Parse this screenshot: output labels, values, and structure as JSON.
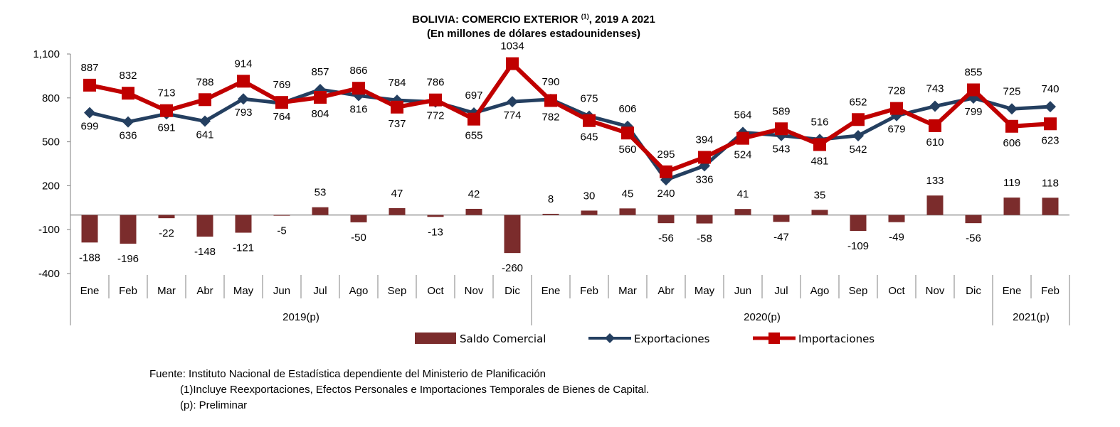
{
  "chart_data": {
    "type": "bar+line",
    "title_line1_main": "BOLIVIA: COMERCIO EXTERIOR",
    "title_line1_sup": "(1)",
    "title_line1_tail": ", 2019 A 2021",
    "title_line2": "(En millones de dólares estadounidenses)",
    "y_ticks": [
      "1,100",
      "800",
      "500",
      "200",
      "-100",
      "-400"
    ],
    "ylim": [
      -400,
      1100
    ],
    "months": [
      "Ene",
      "Feb",
      "Mar",
      "Abr",
      "May",
      "Jun",
      "Jul",
      "Ago",
      "Sep",
      "Oct",
      "Nov",
      "Dic",
      "Ene",
      "Feb",
      "Mar",
      "Abr",
      "May",
      "Jun",
      "Jul",
      "Ago",
      "Sep",
      "Oct",
      "Nov",
      "Dic",
      "Ene",
      "Feb"
    ],
    "years": [
      {
        "label": "2019(p)",
        "count": 12
      },
      {
        "label": "2020(p)",
        "count": 12
      },
      {
        "label": "2021(p)",
        "count": 2
      }
    ],
    "series": [
      {
        "name": "Saldo Comercial",
        "type": "bar",
        "color": "#7b2c2c",
        "values": [
          -188,
          -196,
          -22,
          -148,
          -121,
          -5,
          53,
          -50,
          47,
          -13,
          42,
          -260,
          8,
          30,
          45,
          -56,
          -58,
          41,
          -47,
          35,
          -109,
          -49,
          133,
          -56,
          119,
          118
        ]
      },
      {
        "name": "Exportaciones",
        "type": "line",
        "color": "#243f60",
        "marker": "diamond",
        "values": [
          699,
          636,
          691,
          641,
          793,
          764,
          857,
          816,
          784,
          772,
          697,
          774,
          790,
          675,
          606,
          240,
          336,
          564,
          543,
          516,
          542,
          679,
          743,
          799,
          725,
          740
        ]
      },
      {
        "name": "Importaciones",
        "type": "line",
        "color": "#c00000",
        "marker": "square",
        "values": [
          887,
          832,
          713,
          788,
          914,
          769,
          804,
          866,
          737,
          786,
          655,
          1034,
          782,
          645,
          560,
          295,
          394,
          524,
          589,
          481,
          652,
          728,
          610,
          855,
          606,
          623
        ]
      }
    ],
    "legend_position": "bottom"
  },
  "notes": {
    "source": "Fuente: Instituto Nacional de Estadística dependiente del Ministerio de Planificación",
    "note1": "(1)Incluye Reexportaciones, Efectos Personales e Importaciones Temporales de Bienes de Capital.",
    "note2": "(p): Preliminar"
  }
}
